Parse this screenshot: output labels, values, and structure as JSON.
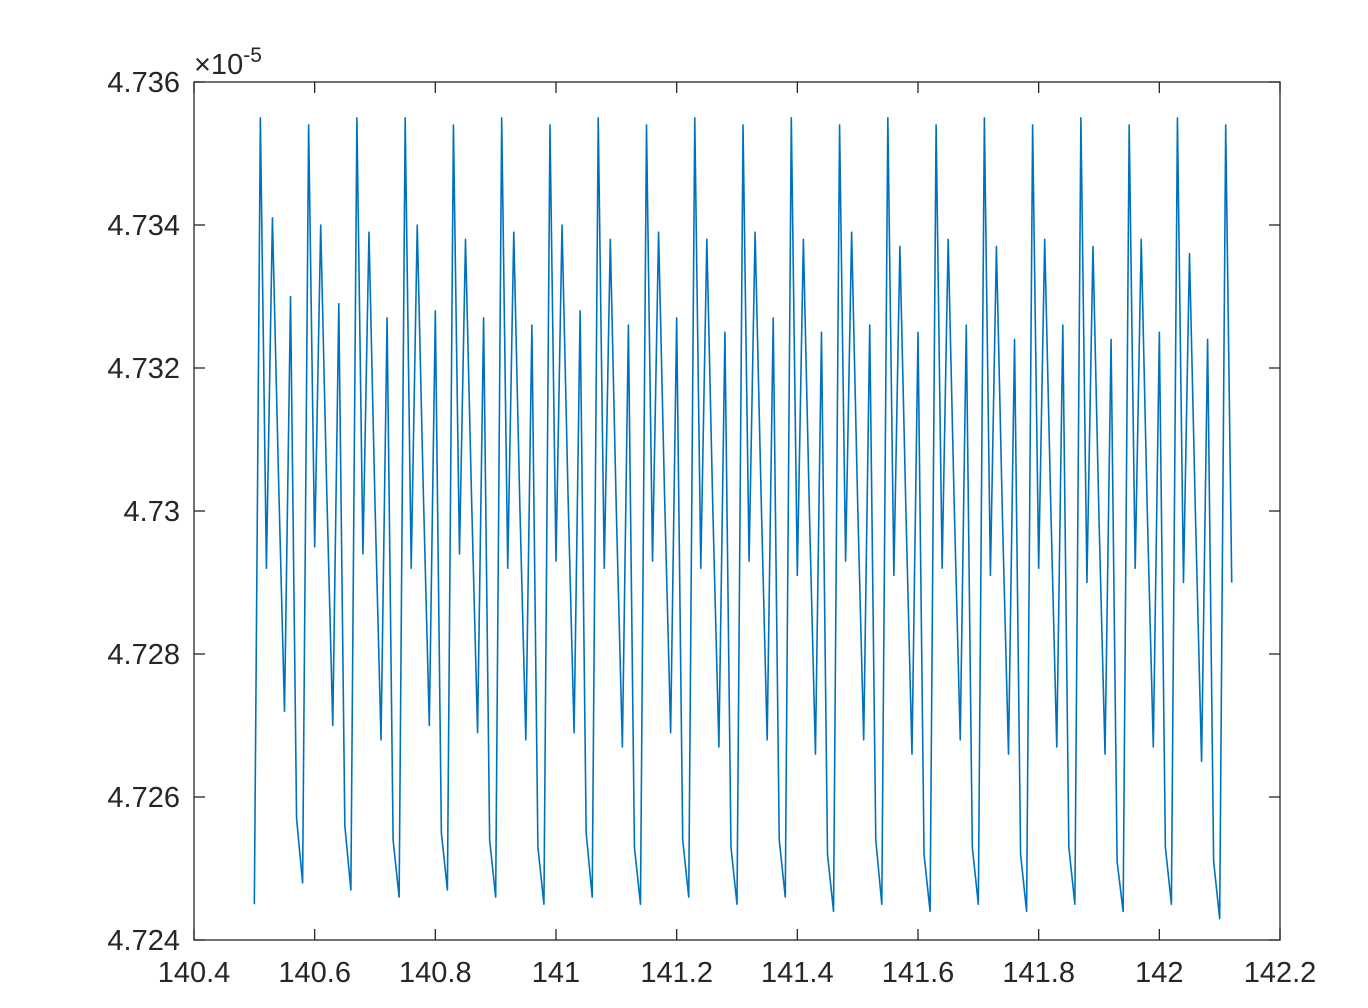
{
  "chart_data": {
    "type": "line",
    "title": "",
    "xlabel": "",
    "ylabel": "",
    "xlim": [
      140.4,
      142.2
    ],
    "ylim": [
      4.724,
      4.736
    ],
    "y_multiplier": {
      "prefix": "×10",
      "exponent": "-5"
    },
    "x_ticks": [
      140.4,
      140.6,
      140.8,
      141,
      141.2,
      141.4,
      141.6,
      141.8,
      142,
      142.2
    ],
    "x_tick_labels": [
      "140.4",
      "140.6",
      "140.8",
      "141",
      "141.2",
      "141.4",
      "141.6",
      "141.8",
      "142",
      "142.2"
    ],
    "y_ticks": [
      4.724,
      4.726,
      4.728,
      4.73,
      4.732,
      4.734,
      4.736
    ],
    "y_tick_labels": [
      "4.724",
      "4.726",
      "4.728",
      "4.73",
      "4.732",
      "4.734",
      "4.736"
    ],
    "grid": false,
    "box": true,
    "series": [
      {
        "color": "#0072bd",
        "x": [
          140.5,
          140.51,
          140.52,
          140.53,
          140.54,
          140.55,
          140.56,
          140.57,
          140.58,
          140.59,
          140.6,
          140.61,
          140.62,
          140.63,
          140.64,
          140.65,
          140.66,
          140.67,
          140.68,
          140.69,
          140.7,
          140.71,
          140.72,
          140.73,
          140.74,
          140.75,
          140.76,
          140.77,
          140.78,
          140.79,
          140.8,
          140.81,
          140.82,
          140.83,
          140.84,
          140.85,
          140.86,
          140.87,
          140.88,
          140.89,
          140.9,
          140.91,
          140.92,
          140.93,
          140.94,
          140.95,
          140.96,
          140.97,
          140.98,
          140.99,
          141.0,
          141.01,
          141.02,
          141.03,
          141.04,
          141.05,
          141.06,
          141.07,
          141.08,
          141.09,
          141.1,
          141.11,
          141.12,
          141.13,
          141.14,
          141.15,
          141.16,
          141.17,
          141.18,
          141.19,
          141.2,
          141.21,
          141.22,
          141.23,
          141.24,
          141.25,
          141.26,
          141.27,
          141.28,
          141.29,
          141.3,
          141.31,
          141.32,
          141.33,
          141.34,
          141.35,
          141.36,
          141.37,
          141.38,
          141.39,
          141.4,
          141.41,
          141.42,
          141.43,
          141.44,
          141.45,
          141.46,
          141.47,
          141.48,
          141.49,
          141.5,
          141.51,
          141.52,
          141.53,
          141.54,
          141.55,
          141.56,
          141.57,
          141.58,
          141.59,
          141.6,
          141.61,
          141.62,
          141.63,
          141.64,
          141.65,
          141.66,
          141.67,
          141.68,
          141.69,
          141.7,
          141.71,
          141.72,
          141.73,
          141.74,
          141.75,
          141.76,
          141.77,
          141.78,
          141.79,
          141.8,
          141.81,
          141.82,
          141.83,
          141.84,
          141.85,
          141.86,
          141.87,
          141.88,
          141.89,
          141.9,
          141.91,
          141.92,
          141.93,
          141.94,
          141.95,
          141.96,
          141.97,
          141.98,
          141.99,
          142.0,
          142.01,
          142.02,
          142.03,
          142.04,
          142.05,
          142.06,
          142.07,
          142.08,
          142.09,
          142.1,
          142.11,
          142.12
        ],
        "y": [
          4.7245,
          4.7355,
          4.7292,
          4.7341,
          4.7305,
          4.7272,
          4.733,
          4.7257,
          4.7248,
          4.7354,
          4.7295,
          4.734,
          4.7303,
          4.727,
          4.7329,
          4.7256,
          4.7247,
          4.7355,
          4.7294,
          4.7339,
          4.7301,
          4.7268,
          4.7327,
          4.7254,
          4.7246,
          4.7355,
          4.7292,
          4.734,
          4.7303,
          4.727,
          4.7328,
          4.7255,
          4.7247,
          4.7354,
          4.7294,
          4.7338,
          4.7302,
          4.7269,
          4.7327,
          4.7254,
          4.7246,
          4.7355,
          4.7292,
          4.7339,
          4.7301,
          4.7268,
          4.7326,
          4.7253,
          4.7245,
          4.7354,
          4.7293,
          4.734,
          4.7302,
          4.7269,
          4.7328,
          4.7255,
          4.7246,
          4.7355,
          4.7292,
          4.7338,
          4.73,
          4.7267,
          4.7326,
          4.7253,
          4.7245,
          4.7354,
          4.7293,
          4.7339,
          4.7302,
          4.7269,
          4.7327,
          4.7254,
          4.7246,
          4.7355,
          4.7292,
          4.7338,
          4.73,
          4.7267,
          4.7325,
          4.7253,
          4.7245,
          4.7354,
          4.7293,
          4.7339,
          4.7302,
          4.7268,
          4.7327,
          4.7254,
          4.7246,
          4.7355,
          4.7291,
          4.7338,
          4.73,
          4.7266,
          4.7325,
          4.7252,
          4.7244,
          4.7354,
          4.7293,
          4.7339,
          4.7301,
          4.7268,
          4.7326,
          4.7254,
          4.7245,
          4.7355,
          4.7291,
          4.7337,
          4.73,
          4.7266,
          4.7325,
          4.7252,
          4.7244,
          4.7354,
          4.7292,
          4.7338,
          4.7301,
          4.7268,
          4.7326,
          4.7253,
          4.7245,
          4.7355,
          4.7291,
          4.7337,
          4.7299,
          4.7266,
          4.7324,
          4.7252,
          4.7244,
          4.7354,
          4.7292,
          4.7338,
          4.7301,
          4.7267,
          4.7326,
          4.7253,
          4.7245,
          4.7355,
          4.729,
          4.7337,
          4.7299,
          4.7266,
          4.7324,
          4.7251,
          4.7244,
          4.7354,
          4.7292,
          4.7338,
          4.73,
          4.7267,
          4.7325,
          4.7253,
          4.7245,
          4.7355,
          4.729,
          4.7336,
          4.7299,
          4.7265,
          4.7324,
          4.7251,
          4.7243,
          4.7354,
          4.729
        ]
      }
    ]
  }
}
